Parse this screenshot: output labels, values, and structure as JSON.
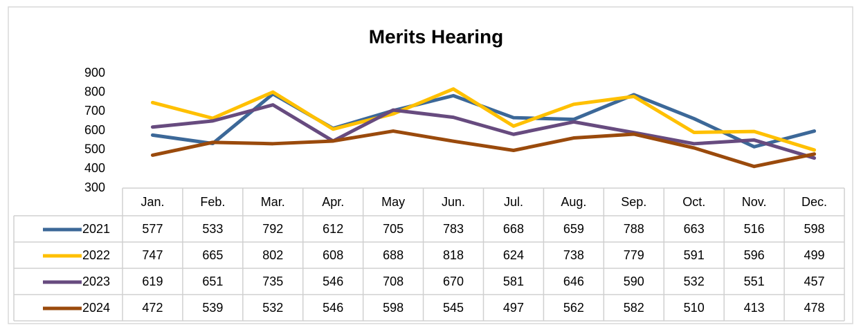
{
  "chart_data": {
    "type": "line",
    "title": "Merits Hearing",
    "categories": [
      "Jan.",
      "Feb.",
      "Mar.",
      "Apr.",
      "May",
      "Jun.",
      "Jul.",
      "Aug.",
      "Sep.",
      "Oct.",
      "Nov.",
      "Dec."
    ],
    "series": [
      {
        "name": "2021",
        "color": "#3c6898",
        "values": [
          577,
          533,
          792,
          612,
          705,
          783,
          668,
          659,
          788,
          663,
          516,
          598
        ]
      },
      {
        "name": "2022",
        "color": "#ffc000",
        "values": [
          747,
          665,
          802,
          608,
          688,
          818,
          624,
          738,
          779,
          591,
          596,
          499
        ]
      },
      {
        "name": "2023",
        "color": "#674b7f",
        "values": [
          619,
          651,
          735,
          546,
          708,
          670,
          581,
          646,
          590,
          532,
          551,
          457
        ]
      },
      {
        "name": "2024",
        "color": "#9a4a0c",
        "values": [
          472,
          539,
          532,
          546,
          598,
          545,
          497,
          562,
          582,
          510,
          413,
          478
        ]
      }
    ],
    "ylim": [
      300,
      900
    ],
    "yticks": [
      300,
      400,
      500,
      600,
      700,
      800,
      900
    ],
    "grid": false
  }
}
